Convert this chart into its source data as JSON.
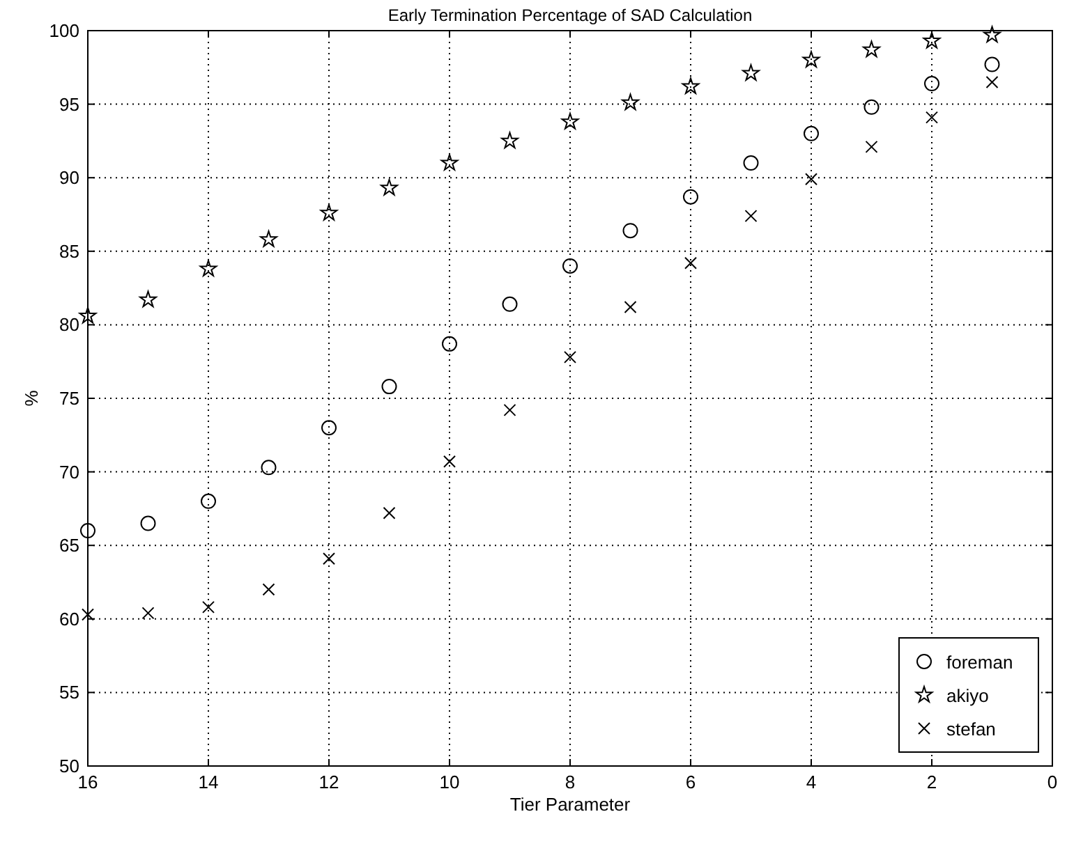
{
  "chart_data": {
    "type": "scatter",
    "title": "Early Termination Percentage of SAD Calculation",
    "xlabel": "Tier Parameter",
    "ylabel": "%",
    "x": [
      16,
      15,
      14,
      13,
      12,
      11,
      10,
      9,
      8,
      7,
      6,
      5,
      4,
      3,
      2,
      1
    ],
    "series": [
      {
        "name": "foreman",
        "color": "#000000",
        "marker": "circle",
        "values": [
          66.0,
          66.5,
          68.0,
          70.3,
          73.0,
          75.8,
          78.7,
          81.4,
          84.0,
          86.4,
          88.7,
          91.0,
          93.0,
          94.8,
          96.4,
          97.7
        ]
      },
      {
        "name": "akiyo",
        "color": "#000000",
        "marker": "star",
        "values": [
          80.6,
          81.7,
          83.8,
          85.8,
          87.6,
          89.3,
          91.0,
          92.5,
          93.8,
          95.1,
          96.2,
          97.1,
          98.0,
          98.7,
          99.3,
          99.7
        ]
      },
      {
        "name": "stefan",
        "color": "#000000",
        "marker": "cross",
        "values": [
          60.3,
          60.4,
          60.8,
          62.0,
          64.1,
          67.2,
          70.7,
          74.2,
          77.8,
          81.2,
          84.2,
          87.4,
          89.9,
          92.1,
          94.1,
          96.5
        ]
      }
    ],
    "xlim": [
      16,
      0
    ],
    "xticks": [
      16,
      14,
      12,
      10,
      8,
      6,
      4,
      2,
      0
    ],
    "ylim": [
      50,
      100
    ],
    "yticks": [
      50,
      55,
      60,
      65,
      70,
      75,
      80,
      85,
      90,
      95,
      100
    ],
    "grid": true,
    "legend": "bottom right"
  }
}
